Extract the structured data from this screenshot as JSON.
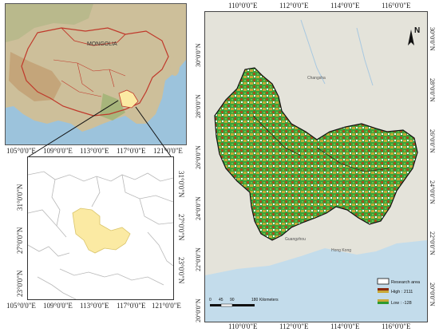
{
  "inset_world": {
    "country_label": "MONGOLIA"
  },
  "inset_detail": {
    "x_ticks": [
      "105°0'0\"E",
      "109°0'0\"E",
      "113°0'0\"E",
      "117°0'0\"E",
      "121°0'0\"E"
    ],
    "y_ticks": [
      "31°0'0\"N",
      "27°0'0\"N",
      "23°0'0\"N"
    ],
    "y_ticks_right": [
      "31°0'0\"N",
      "27°0'0\"N",
      "23°0'0\"N"
    ]
  },
  "main_map": {
    "x_ticks_top": [
      "110°0'0\"E",
      "112°0'0\"E",
      "114°0'0\"E",
      "116°0'0\"E"
    ],
    "x_ticks_bottom": [
      "110°0'0\"E",
      "112°0'0\"E",
      "114°0'0\"E",
      "116°0'0\"E"
    ],
    "y_ticks_left": [
      "30°0'0\"N",
      "28°0'0\"N",
      "26°0'0\"N",
      "24°0'0\"N",
      "22°0'0\"N",
      "20°0'0\"N"
    ],
    "y_ticks_right": [
      "30°0'0\"N",
      "28°0'0\"N",
      "26°0'0\"N",
      "24°0'0\"N",
      "22°0'0\"N",
      "20°0'0\"N"
    ],
    "north_label": "N",
    "scale_ticks": [
      "0",
      "45",
      "90",
      "180"
    ],
    "scale_unit": "Kilometers",
    "legend": {
      "research_area": "Research area",
      "high": "High : 2111",
      "low": "Low : -128"
    },
    "place_labels": [
      "Changsha",
      "Hong Kong",
      "Guangzhou"
    ]
  },
  "colors": {
    "ocean": "#bcd7e8",
    "land": "#d9d6c2",
    "research_fill": "#fbeaa3",
    "dem_low": "#2e9a2e",
    "dem_mid": "#c8a838",
    "dem_high": "#8a2a0e"
  }
}
